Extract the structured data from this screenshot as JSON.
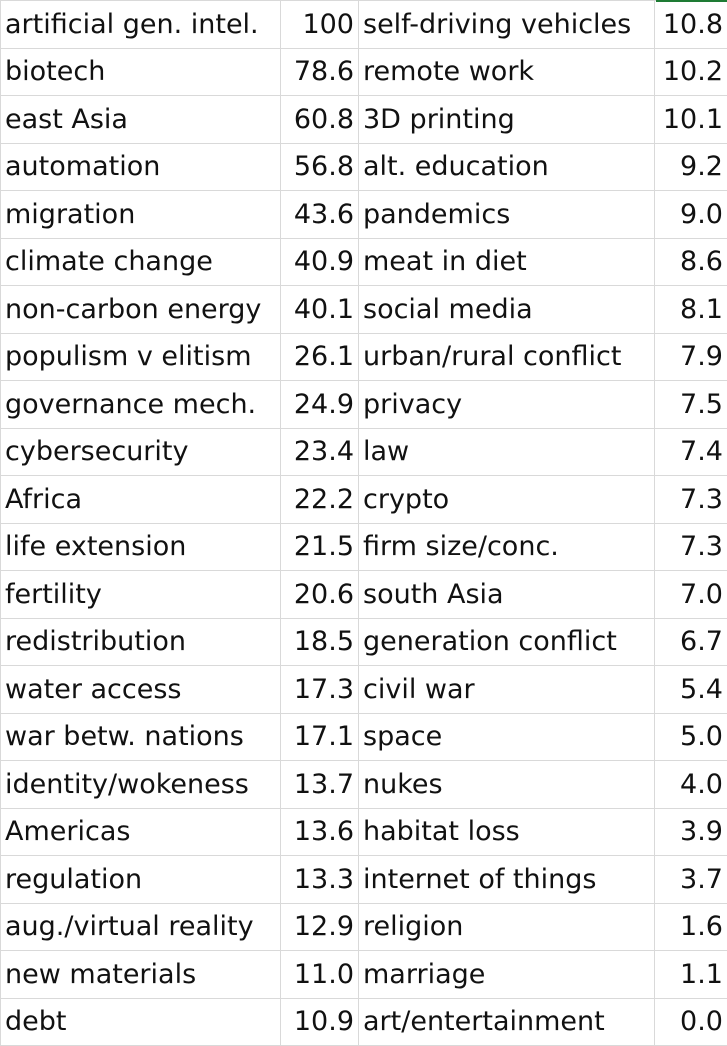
{
  "sheet": {
    "left_column": [
      {
        "topic": "artificial gen. intel.",
        "score": "100"
      },
      {
        "topic": "biotech",
        "score": "78.6"
      },
      {
        "topic": "east Asia",
        "score": "60.8"
      },
      {
        "topic": "automation",
        "score": "56.8"
      },
      {
        "topic": "migration",
        "score": "43.6"
      },
      {
        "topic": "climate change",
        "score": "40.9"
      },
      {
        "topic": "non-carbon energy",
        "score": "40.1"
      },
      {
        "topic": "populism v elitism",
        "score": "26.1"
      },
      {
        "topic": "governance mech.",
        "score": "24.9"
      },
      {
        "topic": "cybersecurity",
        "score": "23.4"
      },
      {
        "topic": "Africa",
        "score": "22.2"
      },
      {
        "topic": "life extension",
        "score": "21.5"
      },
      {
        "topic": "fertility",
        "score": "20.6"
      },
      {
        "topic": "redistribution",
        "score": "18.5"
      },
      {
        "topic": "water access",
        "score": "17.3"
      },
      {
        "topic": "war betw. nations",
        "score": "17.1"
      },
      {
        "topic": "identity/wokeness",
        "score": "13.7"
      },
      {
        "topic": "Americas",
        "score": "13.6"
      },
      {
        "topic": "regulation",
        "score": "13.3"
      },
      {
        "topic": "aug./virtual reality",
        "score": "12.9"
      },
      {
        "topic": "new materials",
        "score": "11.0"
      },
      {
        "topic": "debt",
        "score": "10.9"
      }
    ],
    "right_column": [
      {
        "topic": "self-driving vehicles",
        "score": "10.8"
      },
      {
        "topic": "remote work",
        "score": "10.2"
      },
      {
        "topic": "3D printing",
        "score": "10.1"
      },
      {
        "topic": "alt. education",
        "score": "9.2"
      },
      {
        "topic": "pandemics",
        "score": "9.0"
      },
      {
        "topic": "meat in diet",
        "score": "8.6"
      },
      {
        "topic": "social media",
        "score": "8.1"
      },
      {
        "topic": "urban/rural conflict",
        "score": "7.9"
      },
      {
        "topic": "privacy",
        "score": "7.5"
      },
      {
        "topic": "law",
        "score": "7.4"
      },
      {
        "topic": "crypto",
        "score": "7.3"
      },
      {
        "topic": "firm size/conc.",
        "score": "7.3"
      },
      {
        "topic": "south Asia",
        "score": "7.0"
      },
      {
        "topic": "generation conflict",
        "score": "6.7"
      },
      {
        "topic": "civil war",
        "score": "5.4"
      },
      {
        "topic": "space",
        "score": "5.0"
      },
      {
        "topic": "nukes",
        "score": "4.0"
      },
      {
        "topic": "habitat loss",
        "score": "3.9"
      },
      {
        "topic": "internet of things",
        "score": "3.7"
      },
      {
        "topic": "religion",
        "score": "1.6"
      },
      {
        "topic": "marriage",
        "score": "1.1"
      },
      {
        "topic": "art/entertainment",
        "score": "0.0"
      }
    ],
    "colors": {
      "gridline": "#d9d9d9",
      "text": "#111111",
      "selection_accent": "#1e7b34"
    }
  }
}
